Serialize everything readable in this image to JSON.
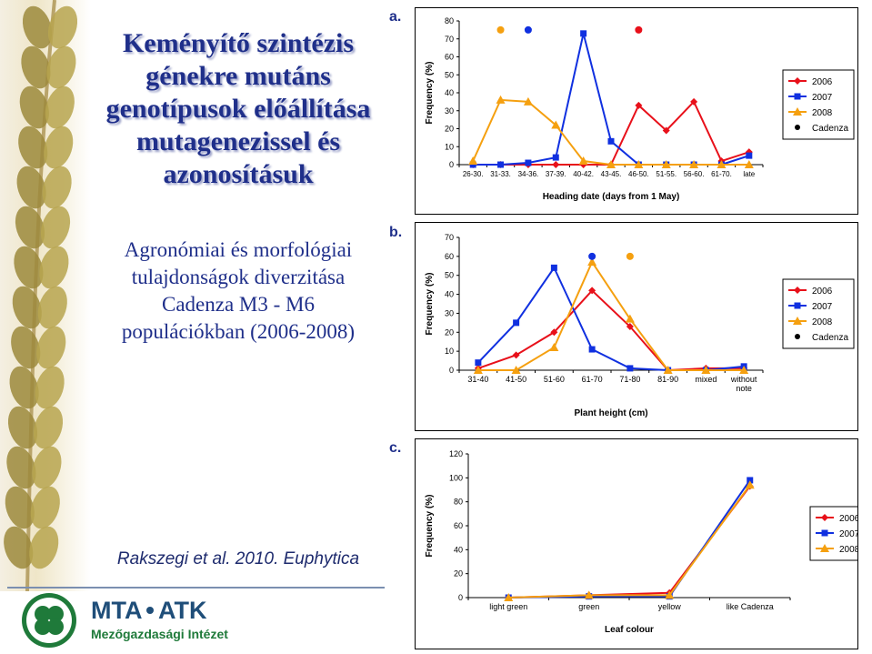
{
  "slide": {
    "title_lines": [
      "Keményítő szintézis",
      "génekre mutáns",
      "genotípusok előállítása",
      "mutagenezissel és",
      "azonosításuk"
    ],
    "subtitle_lines": [
      "Agronómiai és morfológiai",
      "tulajdonságok diverzitása",
      "Cadenza M3 - M6",
      "populációkban (2006-2008)"
    ],
    "citation": "Rakszegi et al. 2010. Euphytica",
    "logo": {
      "text_main_1": "MTA",
      "text_main_2": "ATK",
      "text_sub": "Mezőgazdasági Intézet"
    },
    "panel_labels": [
      "a.",
      "b.",
      "c."
    ]
  },
  "colors": {
    "2006": "#e8101a",
    "2007": "#1030e0",
    "2008": "#f5a010",
    "Cadenza": "#000000"
  },
  "chart_data": [
    {
      "type": "line",
      "xlabel": "Heading date (days from 1 May)",
      "ylabel": "Frequency (%)",
      "ylim": [
        0,
        80
      ],
      "yticks": [
        0,
        10,
        20,
        30,
        40,
        50,
        60,
        70,
        80
      ],
      "categories": [
        "26-30.",
        "31-33.",
        "34-36.",
        "37-39.",
        "40-42.",
        "43-45.",
        "46-50.",
        "51-55.",
        "56-60.",
        "61-70.",
        "late"
      ],
      "series": [
        {
          "name": "2006",
          "values": [
            0,
            0,
            0,
            0,
            0,
            0,
            33,
            19,
            35,
            2,
            7
          ]
        },
        {
          "name": "2007",
          "values": [
            0,
            0,
            1,
            4,
            73,
            13,
            0,
            0,
            0,
            0,
            5
          ]
        },
        {
          "name": "2008",
          "values": [
            2,
            36,
            35,
            22,
            2,
            0,
            0,
            0,
            0,
            0,
            0
          ]
        }
      ],
      "cadenza": [
        {
          "series": "2008",
          "x": "31-33.",
          "y": 75
        },
        {
          "series": "2007",
          "x": "34-36.",
          "y": 75
        },
        {
          "series": "2006",
          "x": "46-50.",
          "y": 75
        }
      ],
      "legend": [
        "2006",
        "2007",
        "2008",
        "Cadenza"
      ]
    },
    {
      "type": "line",
      "xlabel": "Plant height (cm)",
      "ylabel": "Frequency (%)",
      "ylim": [
        0,
        70
      ],
      "yticks": [
        0,
        10,
        20,
        30,
        40,
        50,
        60,
        70
      ],
      "categories": [
        "31-40",
        "41-50",
        "51-60",
        "61-70",
        "71-80",
        "81-90",
        "mixed",
        "without note"
      ],
      "series": [
        {
          "name": "2006",
          "values": [
            1,
            8,
            20,
            42,
            23,
            0,
            1,
            1
          ]
        },
        {
          "name": "2007",
          "values": [
            4,
            25,
            54,
            11,
            1,
            0,
            0,
            2
          ]
        },
        {
          "name": "2008",
          "values": [
            0,
            0,
            12,
            57,
            27,
            0,
            0,
            0
          ]
        }
      ],
      "cadenza": [
        {
          "series": "2007",
          "x": "61-70",
          "y": 60
        },
        {
          "series": "2008",
          "x": "71-80",
          "y": 60
        }
      ],
      "legend": [
        "2006",
        "2007",
        "2008",
        "Cadenza"
      ]
    },
    {
      "type": "line",
      "xlabel": "Leaf colour",
      "ylabel": "Frequency (%)",
      "ylim": [
        0,
        120
      ],
      "yticks": [
        0,
        20,
        40,
        60,
        80,
        100,
        120
      ],
      "categories": [
        "light green",
        "green",
        "yellow",
        "like Cadenza"
      ],
      "series": [
        {
          "name": "2006",
          "values": [
            0,
            2,
            4,
            93
          ]
        },
        {
          "name": "2007",
          "values": [
            0,
            1,
            1,
            98
          ]
        },
        {
          "name": "2008",
          "values": [
            0,
            2,
            2,
            94
          ]
        }
      ],
      "cadenza": [],
      "legend": [
        "2006",
        "2007",
        "2008"
      ]
    }
  ]
}
